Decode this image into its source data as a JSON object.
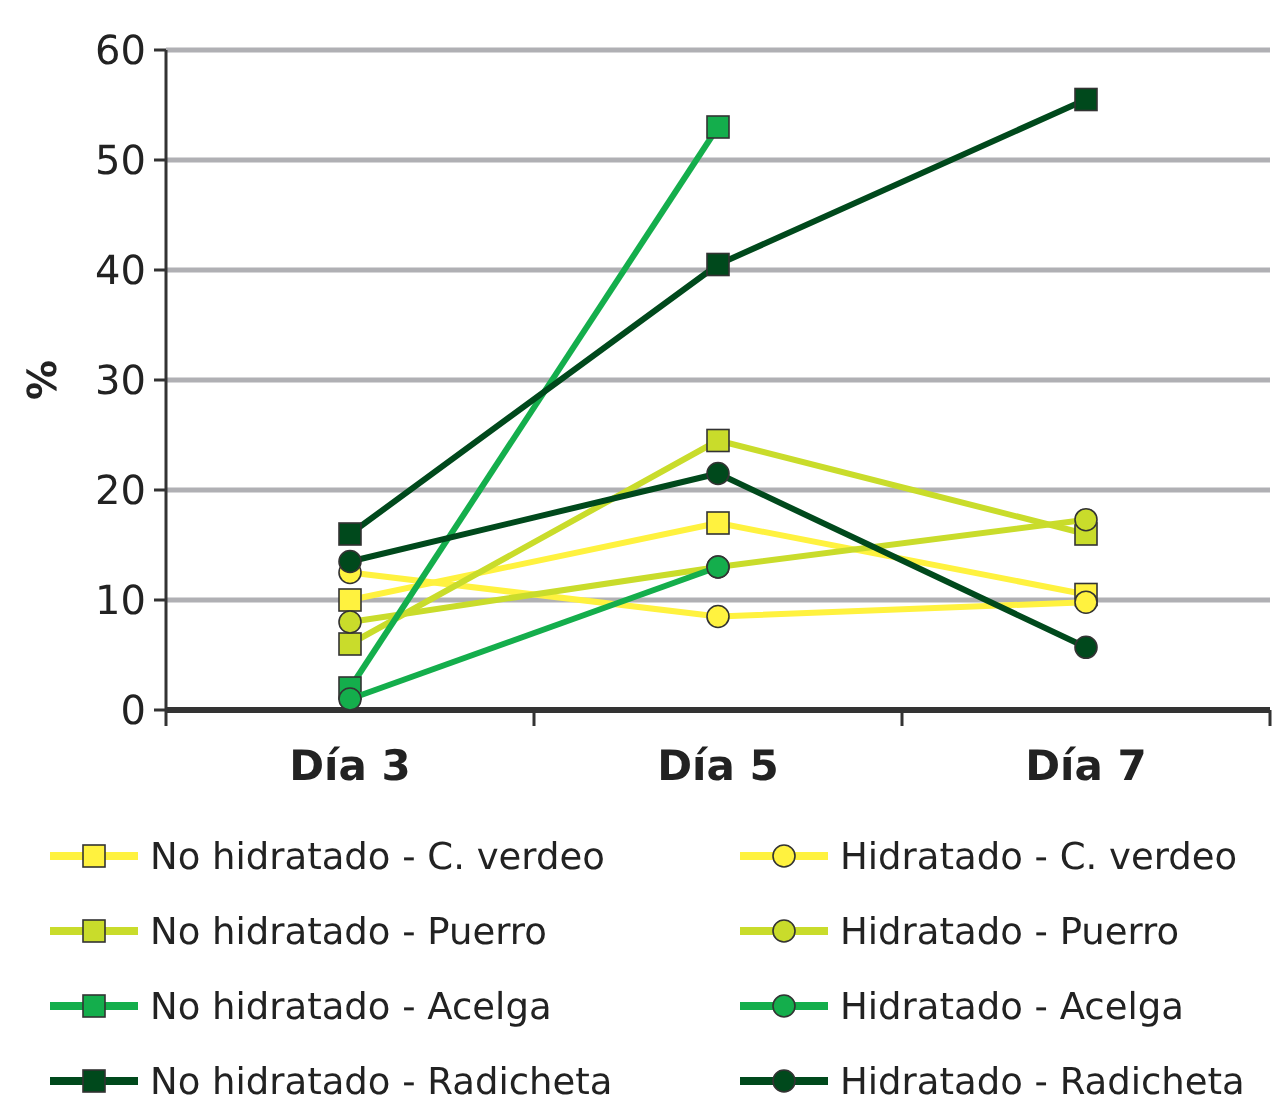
{
  "chart_data": {
    "type": "line",
    "ylabel": "%",
    "categories": [
      "Día 3",
      "Día 5",
      "Día 7"
    ],
    "ylim": [
      0,
      60
    ],
    "yticks": [
      0,
      10,
      20,
      30,
      40,
      50,
      60
    ],
    "grid": "y",
    "legend": "bottom",
    "series": [
      {
        "name": "No hidratado - C. verdeo",
        "color": "#fff23f",
        "marker": "square",
        "values": [
          10,
          17,
          10.5
        ]
      },
      {
        "name": "Hidratado - C. verdeo",
        "color": "#fff23f",
        "marker": "circle",
        "values": [
          12.5,
          8.5,
          9.8
        ]
      },
      {
        "name": "No hidratado - Puerro",
        "color": "#c9dc2b",
        "marker": "square",
        "values": [
          6,
          24.5,
          16
        ]
      },
      {
        "name": "Hidratado - Puerro",
        "color": "#c9dc2b",
        "marker": "circle",
        "values": [
          8,
          13,
          17.3
        ]
      },
      {
        "name": "No hidratado - Acelga",
        "color": "#14ae4c",
        "marker": "square",
        "values": [
          2,
          53,
          null
        ]
      },
      {
        "name": "Hidratado - Acelga",
        "color": "#14ae4c",
        "marker": "circle",
        "values": [
          1,
          13,
          null
        ]
      },
      {
        "name": "No hidratado - Radicheta",
        "color": "#00491c",
        "marker": "square",
        "values": [
          16,
          40.5,
          55.5
        ]
      },
      {
        "name": "Hidratado - Radicheta",
        "color": "#00491c",
        "marker": "circle",
        "values": [
          13.5,
          21.5,
          5.7
        ]
      }
    ]
  }
}
